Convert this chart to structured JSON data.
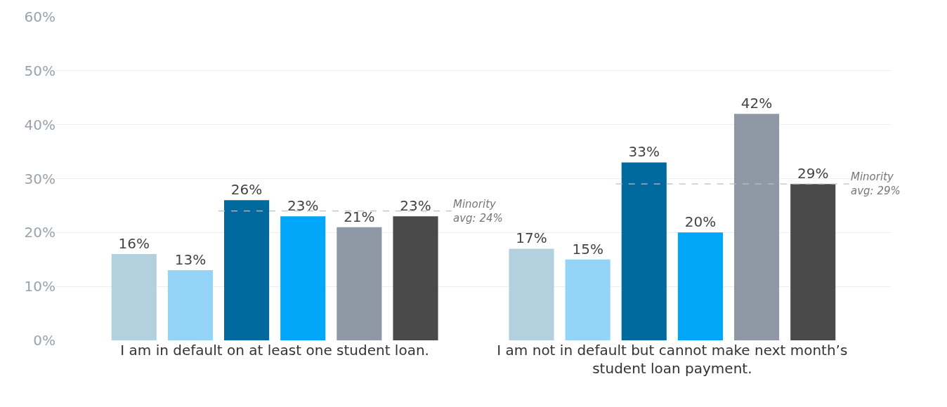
{
  "chart_data": {
    "type": "bar",
    "categories": [
      "I am in default on at least one student loan.",
      "I am not in default but cannot make next month’s student loan payment."
    ],
    "series": [
      {
        "color": "#b3d0de",
        "values": [
          16,
          17
        ]
      },
      {
        "color": "#93d4f7",
        "values": [
          13,
          15
        ]
      },
      {
        "color": "#006a9e",
        "values": [
          26,
          33
        ]
      },
      {
        "color": "#00a6f8",
        "values": [
          23,
          20
        ]
      },
      {
        "color": "#8e99a5",
        "values": [
          21,
          42
        ]
      },
      {
        "color": "#4a4a4a",
        "values": [
          23,
          29
        ]
      }
    ],
    "ylim": [
      0,
      60
    ],
    "yticks": [
      {
        "value": 0,
        "label": "0%"
      },
      {
        "value": 10,
        "label": "10%"
      },
      {
        "value": 20,
        "label": "20%"
      },
      {
        "value": 30,
        "label": "30%"
      },
      {
        "value": 40,
        "label": "40%"
      },
      {
        "value": 50,
        "label": "50%"
      },
      {
        "value": 60,
        "label": "60%"
      }
    ],
    "value_labels": [
      [
        "16%",
        "17%"
      ],
      [
        "13%",
        "15%"
      ],
      [
        "26%",
        "33%"
      ],
      [
        "23%",
        "20%"
      ],
      [
        "21%",
        "42%"
      ],
      [
        "23%",
        "29%"
      ]
    ],
    "ref_lines": [
      {
        "axis": "y",
        "value": 24,
        "label": "Minority avg: 24%",
        "line_style": "dashed",
        "color": "#b8bfca"
      },
      {
        "axis": "y",
        "value": 29,
        "label": "Minority avg: 29%",
        "line_style": "dashed",
        "color": "#b8bfca"
      }
    ],
    "grid": "y",
    "legend": false
  }
}
